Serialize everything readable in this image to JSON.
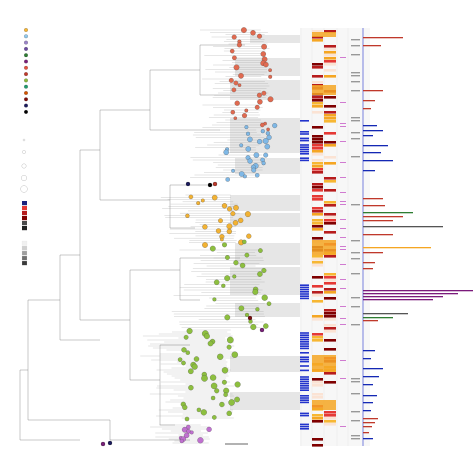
{
  "figure": {
    "type": "phylogenetic-tree-with-heatmap-tracks",
    "legend": {
      "location_labels": [
        "",
        "",
        "",
        "",
        "",
        "",
        "",
        "",
        "",
        "",
        "",
        "",
        "",
        ""
      ],
      "location_colors": [
        "#f6b533",
        "#8fc8ec",
        "#9b84c9",
        "#6a4aa0",
        "#2e7d32",
        "#7a1f7a",
        "#e5533d",
        "#c0392b",
        "#8dbb3b",
        "#1f9b6e",
        "#d35400",
        "#7d0c0c",
        "#1b1b5e",
        "#000000"
      ],
      "size_labels": [
        "",
        "",
        "",
        "",
        ""
      ],
      "heat_labels": [
        "",
        "",
        "",
        "",
        "",
        ""
      ],
      "heat_colors": [
        "#1a237e",
        "#e53935",
        "#b71c1c",
        "#7f0000",
        "#4a4a4a",
        "#222222"
      ],
      "gray_labels": [
        "",
        "",
        "",
        "",
        ""
      ],
      "gray_colors": [
        "#f0f0f0",
        "#cfcfcf",
        "#9e9e9e",
        "#707070",
        "#3a3a3a"
      ]
    },
    "clades": [
      {
        "name": "clade-orange-red",
        "color": "#e06a50"
      },
      {
        "name": "clade-light-blue",
        "color": "#7fb8e6"
      },
      {
        "name": "clade-yellow",
        "color": "#f2b233"
      },
      {
        "name": "clade-green",
        "color": "#8dbf3f"
      },
      {
        "name": "clade-purple",
        "color": "#c070d0"
      }
    ],
    "tracks": {
      "columns": [
        "blue-track",
        "heat-track-1",
        "heat-track-2",
        "pink-track",
        "gray-track"
      ],
      "bar_colors": {
        "red": "#c0392b",
        "blue": "#1428b4",
        "orange": "#f5a623",
        "purple": "#7b1a7b",
        "green": "#2e7d32",
        "gray": "#555555"
      }
    }
  }
}
